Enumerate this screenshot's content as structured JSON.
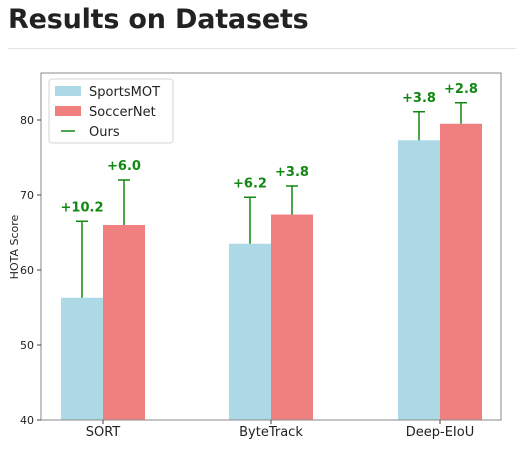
{
  "page": {
    "title": "Results on Datasets"
  },
  "colors": {
    "sportsmot": "#add8e6",
    "soccernet": "#f08080",
    "ours": "#118811",
    "axis": "#888888"
  },
  "chart_data": {
    "type": "bar",
    "ylabel": "HOTA Score",
    "ylim": [
      40,
      85
    ],
    "yticks": [
      40,
      50,
      60,
      70,
      80
    ],
    "categories": [
      "SORT",
      "ByteTrack",
      "Deep-EIoU"
    ],
    "series": [
      {
        "name": "SportsMOT",
        "values": [
          56.3,
          63.5,
          77.3
        ]
      },
      {
        "name": "SoccerNet",
        "values": [
          66.0,
          67.4,
          79.5
        ]
      }
    ],
    "improvements": {
      "name": "Ours",
      "series": [
        {
          "values": [
            10.2,
            6.2,
            3.8
          ],
          "labels": [
            "+10.2",
            "+6.2",
            "+3.8"
          ]
        },
        {
          "values": [
            6.0,
            3.8,
            2.8
          ],
          "labels": [
            "+6.0",
            "+3.8",
            "+2.8"
          ]
        }
      ]
    },
    "legend": {
      "position": "top-left",
      "entries": [
        "SportsMOT",
        "SoccerNet",
        "Ours"
      ]
    },
    "grid": false
  }
}
